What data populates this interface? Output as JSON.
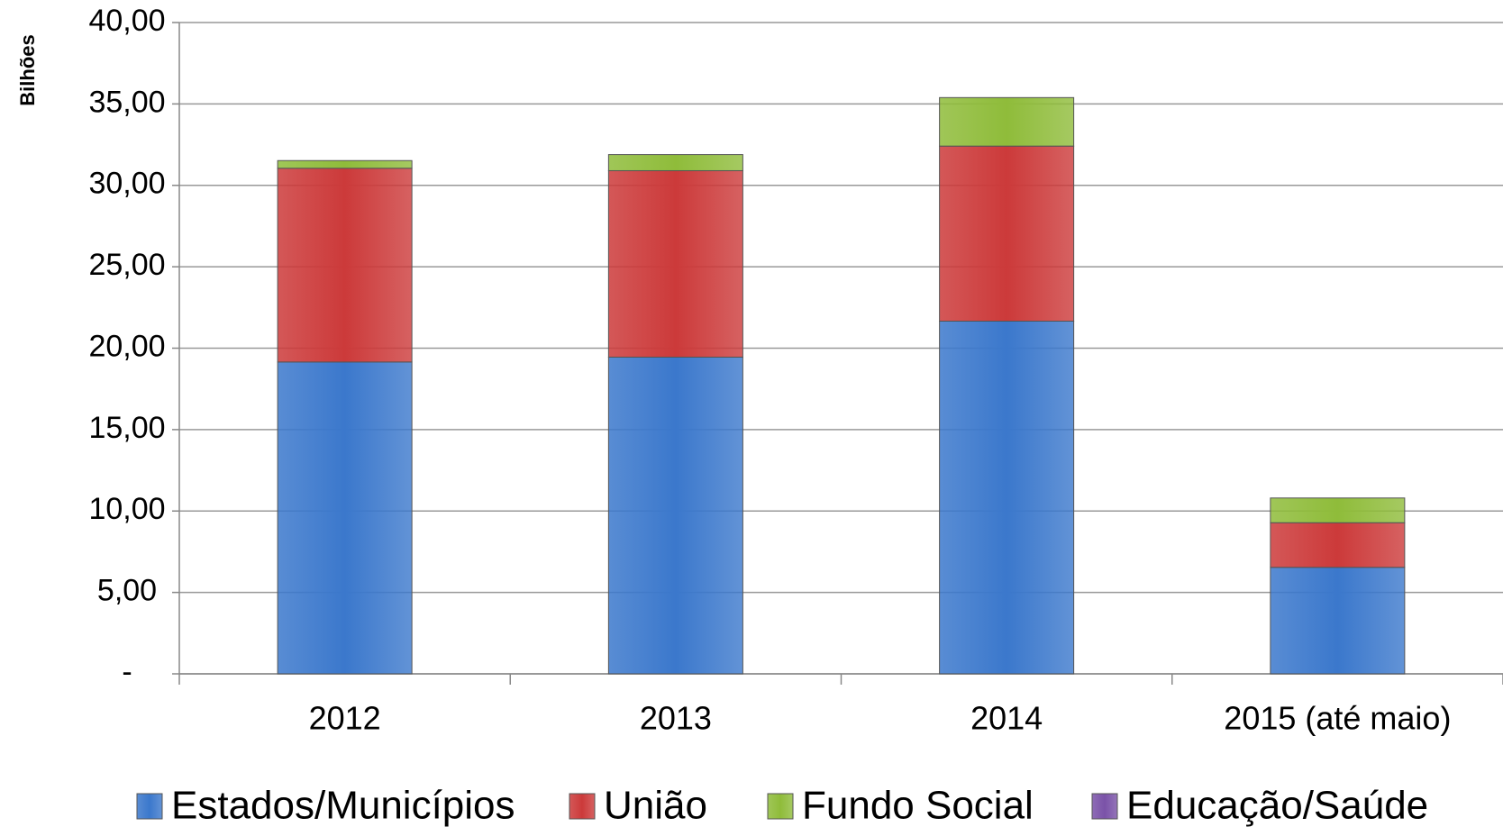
{
  "chart_data": {
    "type": "stacked_bar",
    "y_axis_label": "Bilhões",
    "categories": [
      "2012",
      "2013",
      "2014",
      "2015 (até maio)"
    ],
    "series": [
      {
        "name": "Estados/Municípios",
        "color": "#3b78cc",
        "values": [
          19.15,
          19.45,
          21.66,
          6.54
        ]
      },
      {
        "name": "União",
        "color": "#cc3a3a",
        "values": [
          11.9,
          11.45,
          10.75,
          2.74
        ]
      },
      {
        "name": "Fundo Social",
        "color": "#8fbc3a",
        "values": [
          0.47,
          0.99,
          2.98,
          1.52
        ]
      },
      {
        "name": "Educação/Saúde",
        "color": "#7a52a8",
        "values": [
          0,
          0,
          0,
          0
        ]
      }
    ],
    "ylim": [
      0,
      40
    ],
    "yticks": [
      {
        "value": 0,
        "label": "-"
      },
      {
        "value": 5,
        "label": "5,00"
      },
      {
        "value": 10,
        "label": "10,00"
      },
      {
        "value": 15,
        "label": "15,00"
      },
      {
        "value": 20,
        "label": "20,00"
      },
      {
        "value": 25,
        "label": "25,00"
      },
      {
        "value": 30,
        "label": "30,00"
      },
      {
        "value": 35,
        "label": "35,00"
      },
      {
        "value": 40,
        "label": "40,00"
      }
    ],
    "grid": true,
    "legend": "bottom"
  }
}
